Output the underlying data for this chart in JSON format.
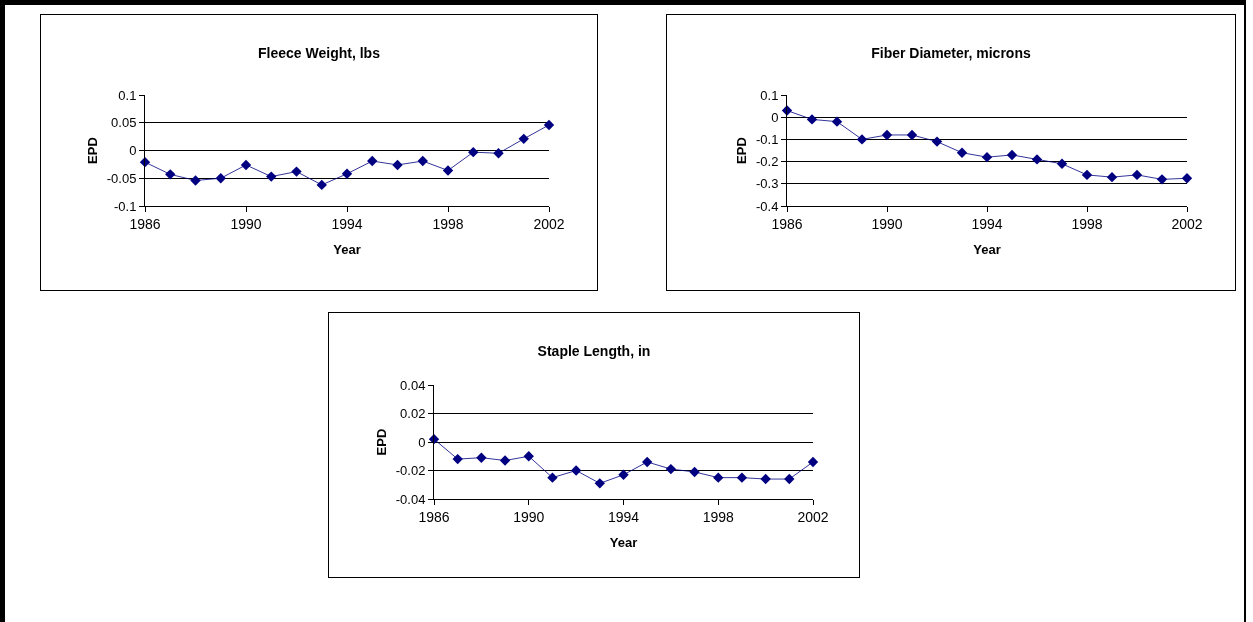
{
  "chart_data": [
    {
      "type": "line",
      "title": "Fleece Weight, lbs",
      "xlabel": "Year",
      "ylabel": "EPD",
      "x": [
        1986,
        1987,
        1988,
        1989,
        1990,
        1991,
        1992,
        1993,
        1994,
        1995,
        1996,
        1997,
        1998,
        1999,
        2000,
        2001,
        2002
      ],
      "series": [
        {
          "color": "#000080",
          "values": [
            -0.021,
            -0.043,
            -0.054,
            -0.05,
            -0.026,
            -0.047,
            -0.038,
            -0.062,
            -0.042,
            -0.019,
            -0.026,
            -0.019,
            -0.036,
            -0.003,
            -0.005,
            0.021,
            0.046
          ]
        }
      ],
      "xlim": [
        1986,
        2002
      ],
      "xticks": [
        1986,
        1990,
        1994,
        1998,
        2002
      ],
      "ylim": [
        -0.1,
        0.1
      ],
      "yticks": [
        -0.1,
        -0.05,
        0,
        0.05,
        0.1
      ],
      "grid": "y",
      "marker": "diamond",
      "line_style": "solid"
    },
    {
      "type": "line",
      "title": "Fiber Diameter, microns",
      "xlabel": "Year",
      "ylabel": "EPD",
      "x": [
        1986,
        1987,
        1988,
        1989,
        1990,
        1991,
        1992,
        1993,
        1994,
        1995,
        1996,
        1997,
        1998,
        1999,
        2000,
        2001,
        2002
      ],
      "series": [
        {
          "color": "#000080",
          "values": [
            0.03,
            -0.01,
            -0.02,
            -0.1,
            -0.08,
            -0.08,
            -0.11,
            -0.16,
            -0.18,
            -0.17,
            -0.19,
            -0.21,
            -0.26,
            -0.27,
            -0.26,
            -0.28,
            -0.275
          ]
        }
      ],
      "xlim": [
        1986,
        2002
      ],
      "xticks": [
        1986,
        1990,
        1994,
        1998,
        2002
      ],
      "ylim": [
        -0.4,
        0.1
      ],
      "yticks": [
        -0.4,
        -0.3,
        -0.2,
        -0.1,
        0,
        0.1
      ],
      "grid": "y",
      "marker": "diamond",
      "line_style": "solid"
    },
    {
      "type": "line",
      "title": "Staple Length, in",
      "xlabel": "Year",
      "ylabel": "EPD",
      "x": [
        1986,
        1987,
        1988,
        1989,
        1990,
        1991,
        1992,
        1993,
        1994,
        1995,
        1996,
        1997,
        1998,
        1999,
        2000,
        2001,
        2002
      ],
      "series": [
        {
          "color": "#000080",
          "values": [
            0.002,
            -0.012,
            -0.011,
            -0.013,
            -0.01,
            -0.025,
            -0.02,
            -0.029,
            -0.023,
            -0.014,
            -0.019,
            -0.021,
            -0.025,
            -0.025,
            -0.026,
            -0.026,
            -0.014
          ]
        }
      ],
      "xlim": [
        1986,
        2002
      ],
      "xticks": [
        1986,
        1990,
        1994,
        1998,
        2002
      ],
      "ylim": [
        -0.04,
        0.04
      ],
      "yticks": [
        -0.04,
        -0.02,
        0,
        0.02,
        0.04
      ],
      "grid": "y",
      "marker": "diamond",
      "line_style": "solid"
    }
  ]
}
